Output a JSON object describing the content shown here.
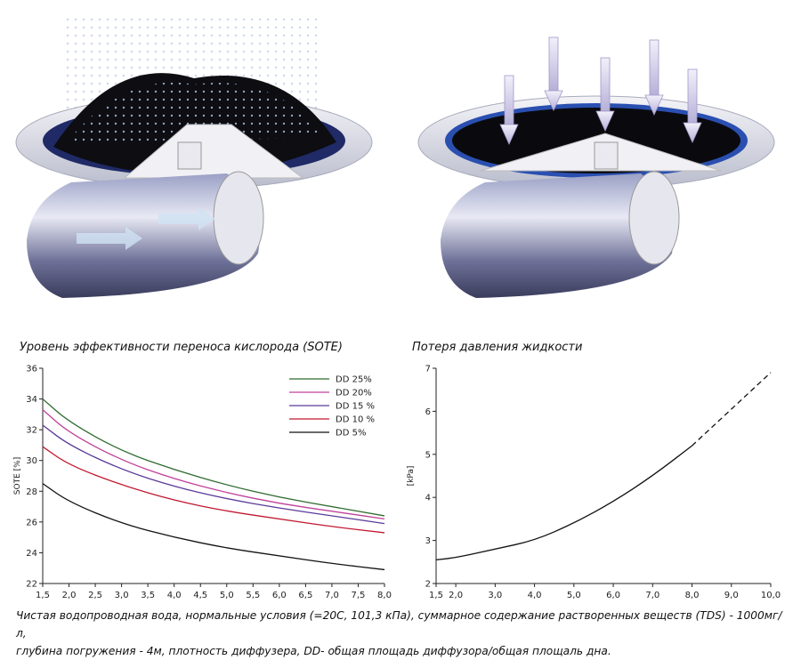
{
  "chart_data": [
    {
      "type": "line",
      "title": "Уровень эффективности переноса кислорода (SOTE)",
      "ylabel": "SOTE [%]",
      "xlim": [
        1.5,
        8.0
      ],
      "ylim": [
        22,
        36
      ],
      "x_ticks": [
        "1,5",
        "2,0",
        "2,5",
        "3,0",
        "3,5",
        "4,0",
        "4,5",
        "5,0",
        "5,5",
        "6,0",
        "6,5",
        "7,0",
        "7,5",
        "8,0"
      ],
      "y_ticks": [
        "22",
        "24",
        "26",
        "28",
        "30",
        "32",
        "34",
        "36"
      ],
      "grid": false,
      "legend_position": "top-right",
      "series": [
        {
          "name": "DD 25%",
          "color": "#2e6b2e",
          "x": [
            1.5,
            2.0,
            3.0,
            4.0,
            5.0,
            6.0,
            7.0,
            8.0
          ],
          "y": [
            34.0,
            32.5,
            30.6,
            29.4,
            28.4,
            27.6,
            27.0,
            26.4
          ]
        },
        {
          "name": "DD 20%",
          "color": "#c0409a",
          "x": [
            1.5,
            2.0,
            3.0,
            4.0,
            5.0,
            6.0,
            7.0,
            8.0
          ],
          "y": [
            33.3,
            31.8,
            30.0,
            28.8,
            27.9,
            27.2,
            26.7,
            26.2
          ]
        },
        {
          "name": "DD 15 %",
          "color": "#5a3a9a",
          "x": [
            1.5,
            2.0,
            3.0,
            4.0,
            5.0,
            6.0,
            7.0,
            8.0
          ],
          "y": [
            32.3,
            31.0,
            29.4,
            28.3,
            27.5,
            26.9,
            26.4,
            25.9
          ]
        },
        {
          "name": "DD 10 %",
          "color": "#c0182f",
          "x": [
            1.5,
            2.0,
            3.0,
            4.0,
            5.0,
            6.0,
            7.0,
            8.0
          ],
          "y": [
            30.9,
            29.7,
            28.4,
            27.4,
            26.7,
            26.2,
            25.7,
            25.3
          ]
        },
        {
          "name": "DD 5%",
          "color": "#111111",
          "x": [
            1.5,
            2.0,
            3.0,
            4.0,
            5.0,
            6.0,
            7.0,
            8.0
          ],
          "y": [
            28.5,
            27.3,
            25.9,
            25.0,
            24.3,
            23.8,
            23.3,
            22.9
          ]
        }
      ]
    },
    {
      "type": "line",
      "title": "Потеря давления жидкости",
      "ylabel": "[kPa]",
      "xlim": [
        1.5,
        10.0
      ],
      "ylim": [
        2,
        7
      ],
      "x_ticks": [
        "1,5",
        "2,0",
        "3,0",
        "4,0",
        "5,0",
        "6,0",
        "7,0",
        "8,0",
        "9,0",
        "10,0"
      ],
      "x_tick_values": [
        1.5,
        2,
        3,
        4,
        5,
        6,
        7,
        8,
        9,
        10
      ],
      "y_ticks": [
        "2",
        "3",
        "4",
        "5",
        "6",
        "7"
      ],
      "grid": false,
      "series": [
        {
          "style": "solid",
          "color": "#111111",
          "x": [
            1.5,
            2.0,
            3.0,
            4.0,
            5.0,
            6.0,
            7.0,
            8.0
          ],
          "y": [
            2.55,
            2.6,
            2.8,
            3.0,
            3.4,
            3.9,
            4.5,
            5.2
          ]
        },
        {
          "style": "dashed",
          "color": "#111111",
          "x": [
            8.0,
            9.0,
            10.0
          ],
          "y": [
            5.2,
            6.05,
            6.9
          ]
        }
      ]
    }
  ],
  "caption": {
    "line1": "Чистая водопроводная вода, нормальные условия (=20С, 101,3 кПа), суммарное содержание растворенных веществ (TDS) - 1000мг/л,",
    "line2": "глубина погружения - 4м, плотность диффузера, DD- общая площадь диффузора/общая площаль дна."
  },
  "illustration": {
    "left_icon": "diffuser-operating-icon",
    "right_icon": "diffuser-closed-icon"
  }
}
